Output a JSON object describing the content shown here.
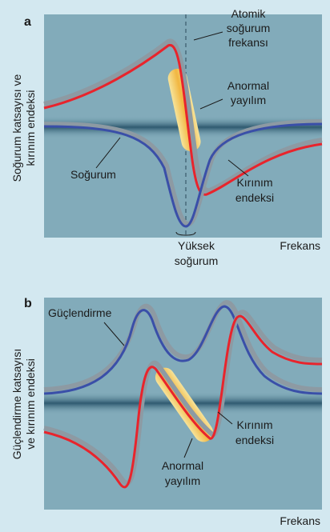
{
  "panel_a": {
    "letter": "a",
    "y_axis_label": [
      "Soğurum katsayısı ve",
      "kırınım endeksi"
    ],
    "atomic_frequency": [
      "Atomik",
      "soğurum",
      "frekansı"
    ],
    "anomalous": [
      "Anormal",
      "yayılım"
    ],
    "absorption": "Soğurum",
    "refractive": [
      "Kırınım",
      "endeksi"
    ],
    "high_absorption": [
      "Yüksek",
      "soğurum"
    ],
    "x_axis_label": "Frekans"
  },
  "panel_b": {
    "letter": "b",
    "y_axis_label": [
      "Güçlendirme katsayısı",
      "ve kırınım endeksi"
    ],
    "gain": "Güçlendirme",
    "refractive": [
      "Kırınım",
      "endeksi"
    ],
    "anomalous": [
      "Anormal",
      "yayılım"
    ],
    "x_axis_label": "Frekans"
  }
}
